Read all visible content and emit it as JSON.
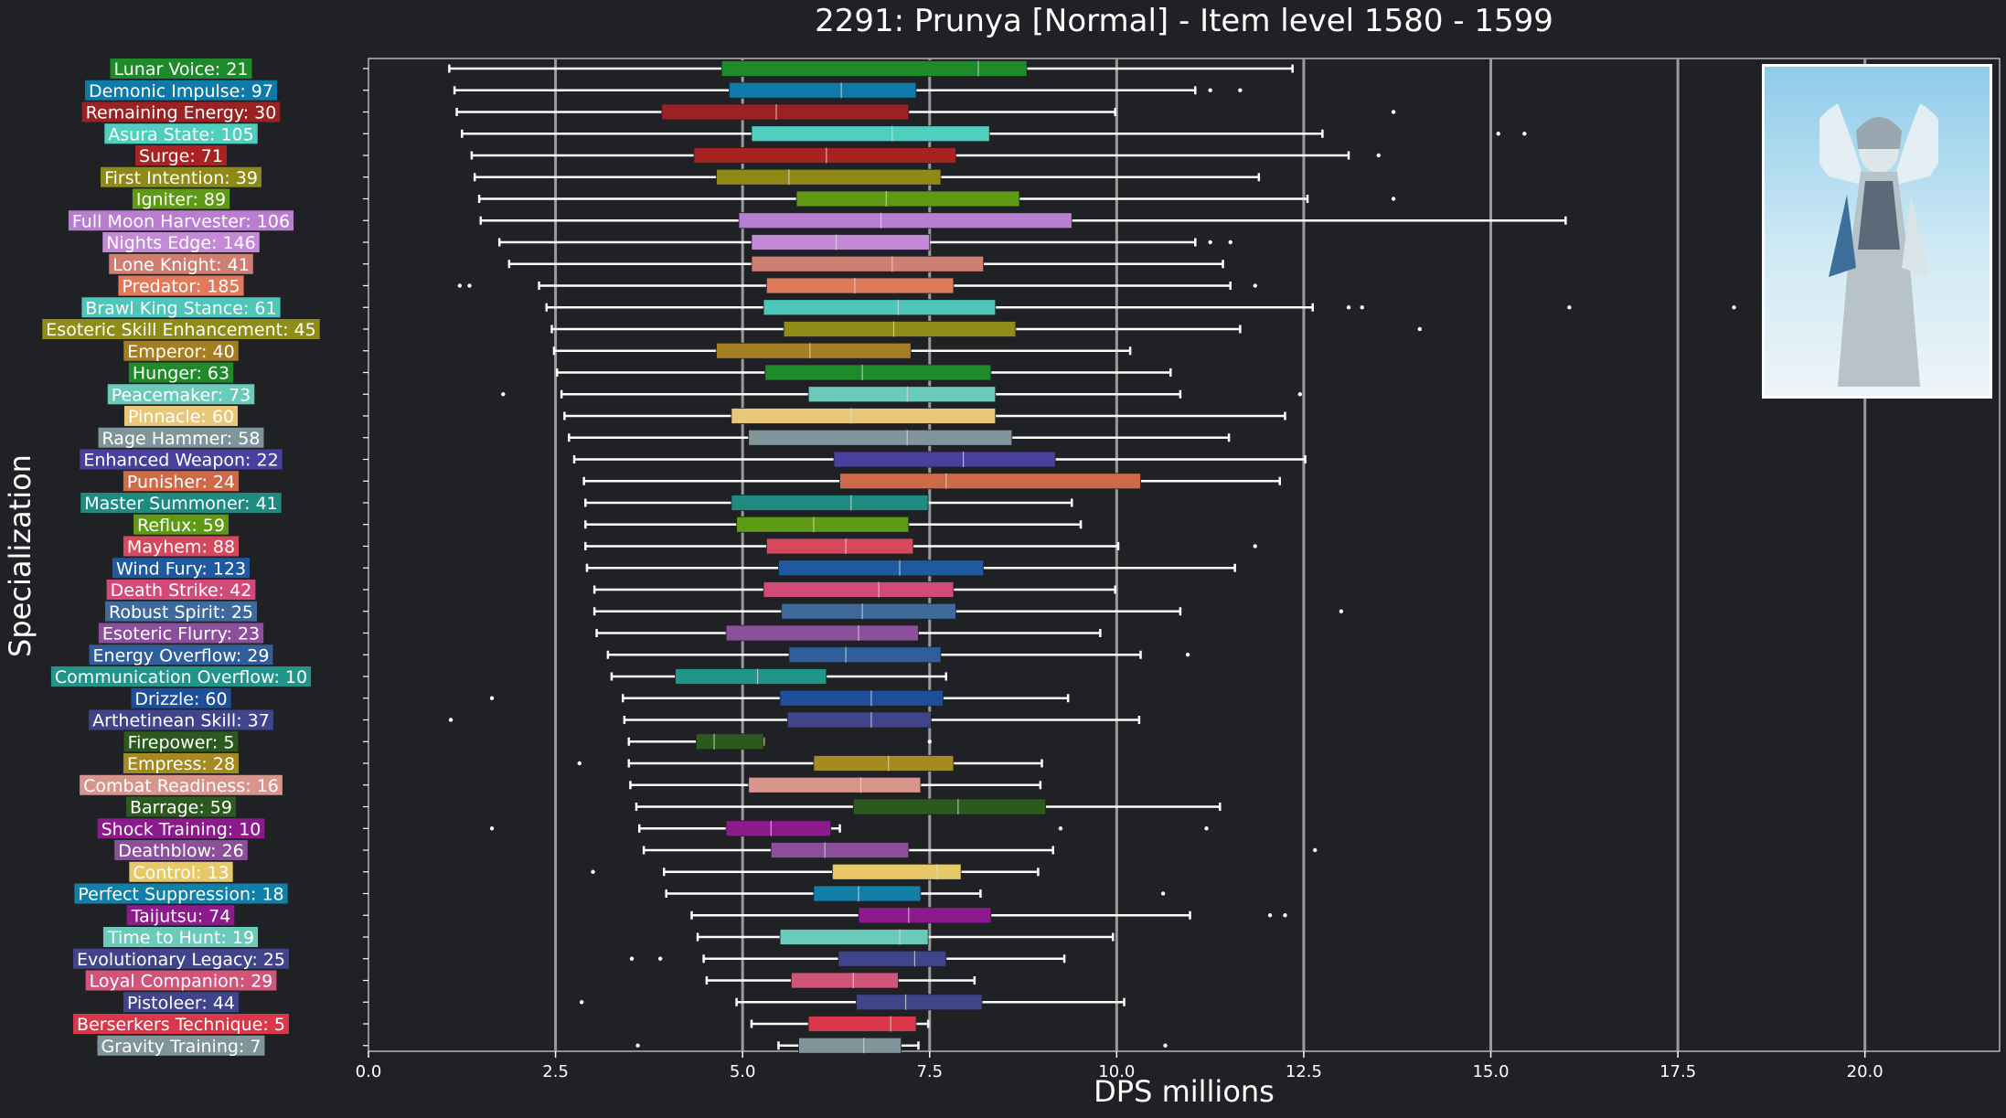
{
  "chart_data": {
    "type": "box",
    "title": "2291: Prunya [Normal] - Item level 1580 - 1599",
    "xlabel": "DPS millions",
    "ylabel": "Specialization",
    "xlim": [
      0,
      21.8
    ],
    "xticks": [
      0.0,
      2.5,
      5.0,
      7.5,
      10.0,
      12.5,
      15.0,
      17.5,
      20.0
    ],
    "xtick_labels": [
      "0.0",
      "2.5",
      "5.0",
      "7.5",
      "10.0",
      "12.5",
      "15.0",
      "17.5",
      "20.0"
    ],
    "grid": "vertical",
    "background": "#1f2125",
    "series": [
      {
        "name": "Lunar Voice",
        "count": 21,
        "min": 1.08,
        "q1": 4.72,
        "median": 8.15,
        "q3": 8.8,
        "max": 12.35,
        "outliers": [],
        "color": "#1f8a2a"
      },
      {
        "name": "Demonic Impulse",
        "count": 97,
        "min": 1.15,
        "q1": 4.82,
        "median": 6.32,
        "q3": 7.32,
        "max": 11.05,
        "outliers": [
          11.25,
          11.65
        ],
        "color": "#0f79a8"
      },
      {
        "name": "Remaining Energy",
        "count": 30,
        "min": 1.18,
        "q1": 3.92,
        "median": 5.45,
        "q3": 7.22,
        "max": 9.98,
        "outliers": [
          13.7
        ],
        "color": "#9a2222"
      },
      {
        "name": "Asura State",
        "count": 105,
        "min": 1.25,
        "q1": 5.12,
        "median": 7.0,
        "q3": 8.3,
        "max": 12.75,
        "outliers": [
          15.1,
          15.45
        ],
        "color": "#4fd0bf"
      },
      {
        "name": "Surge",
        "count": 71,
        "min": 1.38,
        "q1": 4.35,
        "median": 6.12,
        "q3": 7.85,
        "max": 13.1,
        "outliers": [
          13.5
        ],
        "color": "#a82222"
      },
      {
        "name": "First Intention",
        "count": 39,
        "min": 1.42,
        "q1": 4.65,
        "median": 5.62,
        "q3": 7.65,
        "max": 11.9,
        "outliers": [],
        "color": "#8f8a17"
      },
      {
        "name": "Igniter",
        "count": 89,
        "min": 1.48,
        "q1": 5.72,
        "median": 6.92,
        "q3": 8.7,
        "max": 12.55,
        "outliers": [
          13.7
        ],
        "color": "#5e9a14"
      },
      {
        "name": "Full Moon Harvester",
        "count": 106,
        "min": 1.5,
        "q1": 4.95,
        "median": 6.85,
        "q3": 9.4,
        "max": 16.0,
        "outliers": [],
        "color": "#b97ed0"
      },
      {
        "name": "Nights Edge",
        "count": 146,
        "min": 1.75,
        "q1": 5.12,
        "median": 6.25,
        "q3": 7.5,
        "max": 11.05,
        "outliers": [
          11.25,
          11.52
        ],
        "color": "#c48ad6"
      },
      {
        "name": "Lone Knight",
        "count": 41,
        "min": 1.88,
        "q1": 5.12,
        "median": 7.0,
        "q3": 8.22,
        "max": 11.42,
        "outliers": [],
        "color": "#cf7f72"
      },
      {
        "name": "Predator",
        "count": 185,
        "min": 2.28,
        "q1": 5.32,
        "median": 6.5,
        "q3": 7.82,
        "max": 11.52,
        "outliers": [
          1.22,
          1.35,
          11.85
        ],
        "color": "#e07a5b"
      },
      {
        "name": "Brawl King Stance",
        "count": 61,
        "min": 2.38,
        "q1": 5.28,
        "median": 7.08,
        "q3": 8.38,
        "max": 12.62,
        "outliers": [
          13.1,
          13.28,
          16.05,
          18.25
        ],
        "color": "#4ec6b9"
      },
      {
        "name": "Esoteric Skill Enhancement",
        "count": 45,
        "min": 2.45,
        "q1": 5.55,
        "median": 7.02,
        "q3": 8.65,
        "max": 11.65,
        "outliers": [
          14.05
        ],
        "color": "#8f8c17"
      },
      {
        "name": "Emperor",
        "count": 40,
        "min": 2.48,
        "q1": 4.65,
        "median": 5.9,
        "q3": 7.25,
        "max": 10.18,
        "outliers": [],
        "color": "#a57d22"
      },
      {
        "name": "Hunger",
        "count": 63,
        "min": 2.52,
        "q1": 5.3,
        "median": 6.6,
        "q3": 8.32,
        "max": 10.72,
        "outliers": [],
        "color": "#1f8a2a"
      },
      {
        "name": "Peacemaker",
        "count": 73,
        "min": 2.58,
        "q1": 5.88,
        "median": 7.2,
        "q3": 8.38,
        "max": 10.85,
        "outliers": [
          1.8,
          12.45
        ],
        "color": "#6bcbbb"
      },
      {
        "name": "Pinnacle",
        "count": 60,
        "min": 2.62,
        "q1": 4.85,
        "median": 6.45,
        "q3": 8.38,
        "max": 12.25,
        "outliers": [],
        "color": "#e8c77a"
      },
      {
        "name": "Rage Hammer",
        "count": 58,
        "min": 2.68,
        "q1": 5.08,
        "median": 7.2,
        "q3": 8.6,
        "max": 11.5,
        "outliers": [],
        "color": "#7f9599"
      },
      {
        "name": "Enhanced Weapon",
        "count": 22,
        "min": 2.75,
        "q1": 6.22,
        "median": 7.95,
        "q3": 9.18,
        "max": 12.52,
        "outliers": [],
        "color": "#4a3f9c"
      },
      {
        "name": "Punisher",
        "count": 24,
        "min": 2.88,
        "q1": 6.3,
        "median": 7.72,
        "q3": 10.32,
        "max": 12.18,
        "outliers": [],
        "color": "#cf6a48"
      },
      {
        "name": "Master Summoner",
        "count": 41,
        "min": 2.9,
        "q1": 4.85,
        "median": 6.45,
        "q3": 7.48,
        "max": 9.4,
        "outliers": [],
        "color": "#1f8a80"
      },
      {
        "name": "Reflux",
        "count": 59,
        "min": 2.9,
        "q1": 4.92,
        "median": 5.95,
        "q3": 7.22,
        "max": 9.52,
        "outliers": [],
        "color": "#5e9a14"
      },
      {
        "name": "Mayhem",
        "count": 88,
        "min": 2.9,
        "q1": 5.32,
        "median": 6.38,
        "q3": 7.28,
        "max": 10.02,
        "outliers": [
          11.85
        ],
        "color": "#d8485c"
      },
      {
        "name": "Wind Fury",
        "count": 123,
        "min": 2.92,
        "q1": 5.48,
        "median": 7.1,
        "q3": 8.22,
        "max": 11.58,
        "outliers": [],
        "color": "#1f5aa0"
      },
      {
        "name": "Death Strike",
        "count": 42,
        "min": 3.02,
        "q1": 5.28,
        "median": 6.82,
        "q3": 7.82,
        "max": 9.98,
        "outliers": [],
        "color": "#d24a7a"
      },
      {
        "name": "Robust Spirit",
        "count": 25,
        "min": 3.02,
        "q1": 5.52,
        "median": 6.6,
        "q3": 7.85,
        "max": 10.85,
        "outliers": [
          13.0
        ],
        "color": "#3d6a9a"
      },
      {
        "name": "Esoteric Flurry",
        "count": 23,
        "min": 3.05,
        "q1": 4.78,
        "median": 6.55,
        "q3": 7.35,
        "max": 9.78,
        "outliers": [],
        "color": "#8c4f9b"
      },
      {
        "name": "Energy Overflow",
        "count": 29,
        "min": 3.2,
        "q1": 5.62,
        "median": 6.38,
        "q3": 7.65,
        "max": 10.32,
        "outliers": [
          10.95
        ],
        "color": "#2f5e9a"
      },
      {
        "name": "Communication Overflow",
        "count": 10,
        "min": 3.25,
        "q1": 4.1,
        "median": 5.2,
        "q3": 6.12,
        "max": 7.72,
        "outliers": [],
        "color": "#22958a"
      },
      {
        "name": "Drizzle",
        "count": 60,
        "min": 3.4,
        "q1": 5.5,
        "median": 6.72,
        "q3": 7.68,
        "max": 9.35,
        "outliers": [
          1.65
        ],
        "color": "#1f4f9a"
      },
      {
        "name": "Arthetinean Skill",
        "count": 37,
        "min": 3.42,
        "q1": 5.6,
        "median": 6.72,
        "q3": 7.52,
        "max": 10.3,
        "outliers": [
          1.1
        ],
        "color": "#40448a"
      },
      {
        "name": "Firepower",
        "count": 5,
        "min": 3.48,
        "q1": 4.38,
        "median": 4.62,
        "q3": 5.28,
        "max": 5.28,
        "outliers": [
          7.5
        ],
        "color": "#2c5a1e"
      },
      {
        "name": "Empress",
        "count": 28,
        "min": 3.48,
        "q1": 5.95,
        "median": 6.95,
        "q3": 7.82,
        "max": 9.0,
        "outliers": [
          2.82
        ],
        "color": "#a58a22"
      },
      {
        "name": "Combat Readiness",
        "count": 16,
        "min": 3.5,
        "q1": 5.08,
        "median": 6.58,
        "q3": 7.38,
        "max": 8.98,
        "outliers": [],
        "color": "#d8958c"
      },
      {
        "name": "Barrage",
        "count": 59,
        "min": 3.58,
        "q1": 6.48,
        "median": 7.88,
        "q3": 9.05,
        "max": 11.38,
        "outliers": [],
        "color": "#2c5a1e"
      },
      {
        "name": "Shock Training",
        "count": 10,
        "min": 3.62,
        "q1": 4.78,
        "median": 5.38,
        "q3": 6.18,
        "max": 6.3,
        "outliers": [
          1.65,
          9.25,
          11.2
        ],
        "color": "#8c1a8c"
      },
      {
        "name": "Deathblow",
        "count": 26,
        "min": 3.68,
        "q1": 5.38,
        "median": 6.1,
        "q3": 7.22,
        "max": 9.15,
        "outliers": [
          12.65
        ],
        "color": "#8c4f9b"
      },
      {
        "name": "Control",
        "count": 13,
        "min": 3.95,
        "q1": 6.2,
        "median": 7.6,
        "q3": 7.92,
        "max": 8.95,
        "outliers": [
          3.0
        ],
        "color": "#e8c968"
      },
      {
        "name": "Perfect Suppression",
        "count": 18,
        "min": 3.98,
        "q1": 5.95,
        "median": 6.55,
        "q3": 7.38,
        "max": 8.18,
        "outliers": [
          10.62
        ],
        "color": "#1080a8"
      },
      {
        "name": "Taijutsu",
        "count": 74,
        "min": 4.32,
        "q1": 6.55,
        "median": 7.22,
        "q3": 8.32,
        "max": 10.98,
        "outliers": [
          12.05,
          12.25
        ],
        "color": "#8c1a8c"
      },
      {
        "name": "Time to Hunt",
        "count": 19,
        "min": 4.4,
        "q1": 5.5,
        "median": 7.1,
        "q3": 7.48,
        "max": 9.95,
        "outliers": [],
        "color": "#6bcbbb"
      },
      {
        "name": "Evolutionary Legacy",
        "count": 25,
        "min": 4.48,
        "q1": 6.28,
        "median": 7.3,
        "q3": 7.72,
        "max": 9.3,
        "outliers": [
          3.52,
          3.9
        ],
        "color": "#40448a"
      },
      {
        "name": "Loyal Companion",
        "count": 29,
        "min": 4.52,
        "q1": 5.65,
        "median": 6.48,
        "q3": 7.08,
        "max": 8.1,
        "outliers": [],
        "color": "#d0557a"
      },
      {
        "name": "Pistoleer",
        "count": 44,
        "min": 4.92,
        "q1": 6.52,
        "median": 7.18,
        "q3": 8.2,
        "max": 10.1,
        "outliers": [
          2.85
        ],
        "color": "#40448a"
      },
      {
        "name": "Berserkers Technique",
        "count": 5,
        "min": 5.12,
        "q1": 5.88,
        "median": 6.98,
        "q3": 7.32,
        "max": 7.48,
        "outliers": [],
        "color": "#d8384a"
      },
      {
        "name": "Gravity Training",
        "count": 7,
        "min": 5.48,
        "q1": 5.75,
        "median": 6.62,
        "q3": 7.12,
        "max": 7.35,
        "outliers": [
          3.6,
          10.65
        ],
        "color": "#7f9599"
      }
    ]
  }
}
